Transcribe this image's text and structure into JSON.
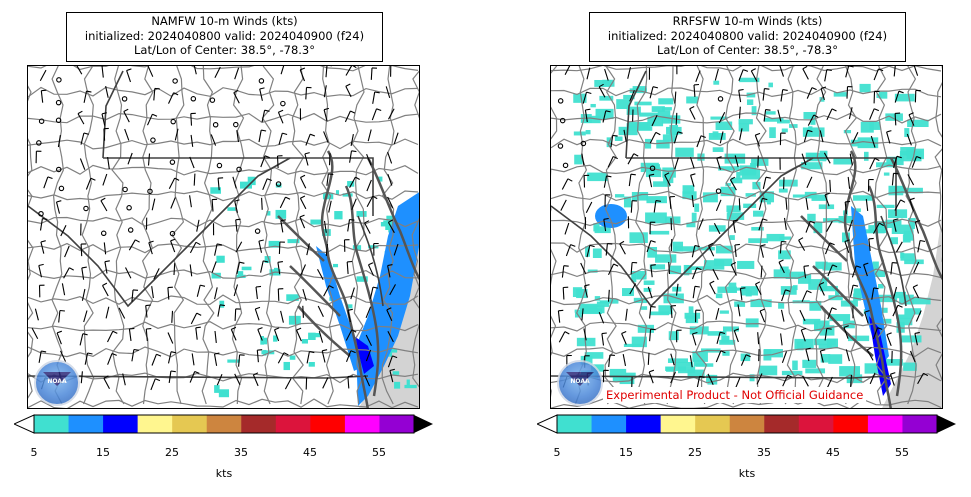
{
  "panels": [
    {
      "id": "left",
      "title_lines": [
        "NAMFW 10-m Winds (kts)",
        "initialized: 2024040800 valid: 2024040900 (f24)",
        "Lat/Lon of Center: 38.5°, -78.3°"
      ],
      "logo_text": "NOAA",
      "disclaimer": ""
    },
    {
      "id": "right",
      "title_lines": [
        "RRFSFW 10-m Winds (kts)",
        "initialized: 2024040800 valid: 2024040900 (f24)",
        "Lat/Lon of Center: 38.5°, -78.3°"
      ],
      "logo_text": "NOAA",
      "disclaimer": "Experimental Product - Not Official Guidance"
    }
  ],
  "colorbar": {
    "colors": [
      "#40e0d0",
      "#1e90ff",
      "#0000ff",
      "#fff68f",
      "#e5c852",
      "#cd853f",
      "#a52a2a",
      "#dc143c",
      "#ff0000",
      "#ff00ff",
      "#9400d3"
    ],
    "under_color": "#ffffff",
    "over_color": "#000000",
    "tick_labels": [
      "5",
      "15",
      "25",
      "35",
      "45",
      "55"
    ],
    "label": "kts"
  },
  "colors": {
    "land": "#ffffff",
    "ocean": "#d3d3d3",
    "county_border": "#808080",
    "state_border": "#404040"
  }
}
